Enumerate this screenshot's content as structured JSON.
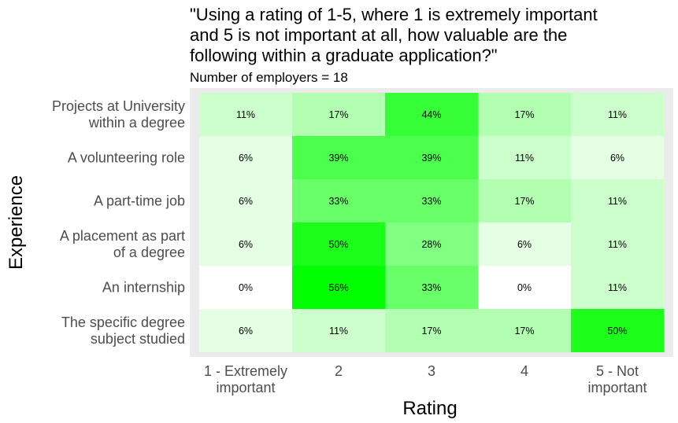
{
  "chart_data": {
    "type": "heatmap",
    "title_lines": [
      "\"Using a rating of 1-5, where 1 is extremely important",
      "and 5 is not important at all, how valuable are the",
      "following within a graduate application?\""
    ],
    "subtitle": "Number of employers = 18",
    "xlabel": "Rating",
    "ylabel": "Experience",
    "x_categories": [
      [
        "1 - Extremely",
        "important"
      ],
      [
        "2"
      ],
      [
        "3"
      ],
      [
        "4"
      ],
      [
        "5 - Not",
        "important"
      ]
    ],
    "y_categories": [
      [
        "Projects at University",
        "within a degree"
      ],
      [
        "A volunteering role"
      ],
      [
        "A part-time job"
      ],
      [
        "A placement as part",
        "of a degree"
      ],
      [
        "An internship"
      ],
      [
        "The specific degree",
        "subject studied"
      ]
    ],
    "values": [
      [
        11,
        17,
        44,
        17,
        11
      ],
      [
        6,
        39,
        39,
        11,
        6
      ],
      [
        6,
        33,
        33,
        17,
        11
      ],
      [
        6,
        50,
        28,
        6,
        11
      ],
      [
        0,
        56,
        33,
        0,
        11
      ],
      [
        6,
        11,
        17,
        17,
        50
      ]
    ],
    "value_suffix": "%",
    "color_low": "#ffffff",
    "color_high": "#00ff00",
    "panel_background": "#ebebeb"
  }
}
